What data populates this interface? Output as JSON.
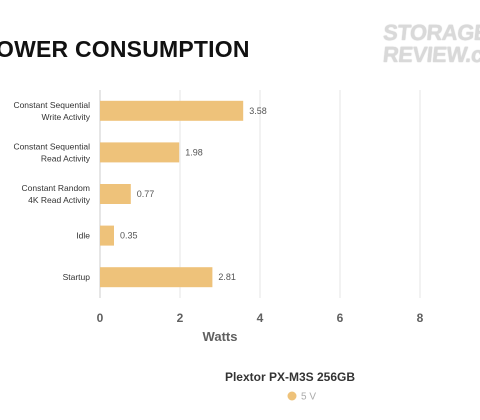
{
  "page": {
    "title": "OWER CONSUMPTION",
    "logo": {
      "line1": "STORAGE",
      "line2": "REVIEW.co"
    }
  },
  "colors": {
    "bar": "#eec27a",
    "grid": "#e6e6e6",
    "axis": "#cccccc"
  },
  "chart_data": {
    "type": "bar",
    "orientation": "horizontal",
    "categories": [
      [
        "Constant Sequential",
        "Write Activity"
      ],
      [
        "Constant Sequential",
        "Read Activity"
      ],
      [
        "Constant Random",
        "4K Read Activity"
      ],
      [
        "Idle"
      ],
      [
        "Startup"
      ]
    ],
    "series": [
      {
        "name": "5 V",
        "values": [
          3.58,
          1.98,
          0.77,
          0.35,
          2.81
        ]
      }
    ],
    "value_labels": [
      "3.58",
      "1.98",
      "0.77",
      "0.35",
      "2.81"
    ],
    "xlabel": "Watts",
    "xticks": [
      "0",
      "2",
      "4",
      "6",
      "8"
    ],
    "xlim": [
      0,
      9.5
    ],
    "grid": true,
    "legend": {
      "title": "Plextor PX-M3S 256GB",
      "placement": "bottom-center"
    }
  }
}
